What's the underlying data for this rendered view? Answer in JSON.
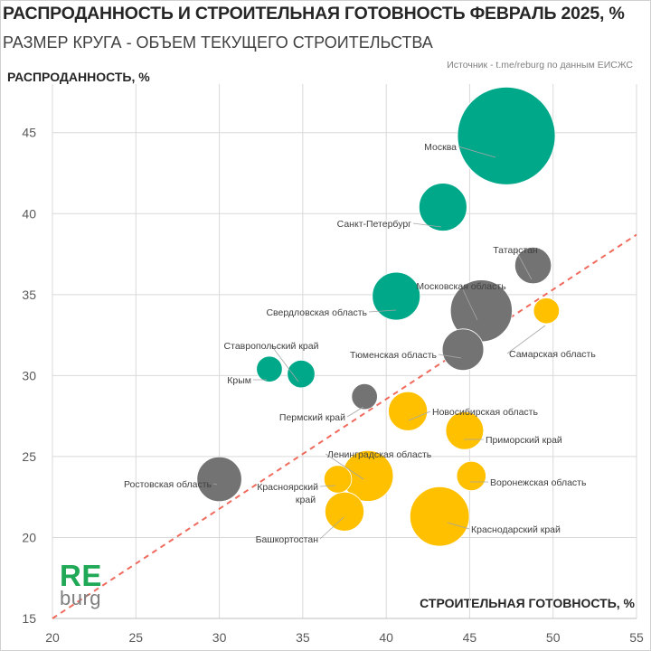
{
  "header": {
    "title": "РАСПРОДАННОСТЬ И СТРОИТЕЛЬНАЯ ГОТОВНОСТЬ ФЕВРАЛЬ 2025, %",
    "subtitle": "РАЗМЕР КРУГА - ОБЪЕМ ТЕКУЩЕГО СТРОИТЕЛЬСТВА",
    "source": "Источник - t.me/reburg по данным ЕИСЖС"
  },
  "logo": {
    "main": "RE",
    "sub": "burg"
  },
  "colors": {
    "green": "#00a88a",
    "gray": "#737373",
    "yellow": "#ffc000",
    "trend": "#f06b5e",
    "grid": "#d9d9d9"
  },
  "chart_data": {
    "type": "bubble",
    "xlabel": "СТРОИТЕЛЬНАЯ ГОТОВНОСТЬ, %",
    "ylabel": "РАСПРОДАННОСТЬ, %",
    "xlim": [
      20,
      55
    ],
    "ylim": [
      15,
      48
    ],
    "xticks": [
      20,
      25,
      30,
      35,
      40,
      45,
      50,
      55
    ],
    "yticks": [
      15,
      20,
      25,
      30,
      35,
      40,
      45
    ],
    "grid": true,
    "trendline": {
      "from": [
        20,
        15
      ],
      "to": [
        55,
        38.7
      ],
      "style": "dashed"
    },
    "points": [
      {
        "name": "Москва",
        "x": 47.2,
        "y": 44.8,
        "size": 100,
        "group": "green"
      },
      {
        "name": "Санкт-Петербург",
        "x": 43.4,
        "y": 40.4,
        "size": 24,
        "group": "green"
      },
      {
        "name": "Свердловская область",
        "x": 40.6,
        "y": 34.9,
        "size": 24,
        "group": "green"
      },
      {
        "name": "Ставропольский край",
        "x": 34.9,
        "y": 30.1,
        "size": 8,
        "group": "green"
      },
      {
        "name": "Крым",
        "x": 33.0,
        "y": 30.4,
        "size": 7,
        "group": "green"
      },
      {
        "name": "Татарстан",
        "x": 48.8,
        "y": 36.8,
        "size": 14,
        "group": "gray"
      },
      {
        "name": "Московская область",
        "x": 45.7,
        "y": 34.0,
        "size": 40,
        "group": "gray"
      },
      {
        "name": "Тюменская область",
        "x": 44.6,
        "y": 31.6,
        "size": 18,
        "group": "gray"
      },
      {
        "name": "Пермский край",
        "x": 38.7,
        "y": 28.7,
        "size": 7,
        "group": "gray"
      },
      {
        "name": "Ростовская область",
        "x": 30.0,
        "y": 23.6,
        "size": 21,
        "group": "gray"
      },
      {
        "name": "Самарская область",
        "x": 49.6,
        "y": 34.0,
        "size": 7,
        "group": "yellow"
      },
      {
        "name": "Новосибирская область",
        "x": 41.3,
        "y": 27.8,
        "size": 16,
        "group": "yellow"
      },
      {
        "name": "Приморский край",
        "x": 44.7,
        "y": 26.6,
        "size": 15,
        "group": "yellow"
      },
      {
        "name": "Ленинградская область",
        "x": 38.9,
        "y": 23.8,
        "size": 27,
        "group": "yellow"
      },
      {
        "name": "Воронежская область",
        "x": 45.1,
        "y": 23.8,
        "size": 9,
        "group": "yellow"
      },
      {
        "name": "Красноярский край",
        "x": 37.1,
        "y": 23.6,
        "size": 8,
        "group": "yellow"
      },
      {
        "name": "Краснодарский край",
        "x": 43.2,
        "y": 21.3,
        "size": 37,
        "group": "yellow"
      },
      {
        "name": "Башкортостан",
        "x": 37.5,
        "y": 21.6,
        "size": 16,
        "group": "yellow"
      }
    ]
  }
}
